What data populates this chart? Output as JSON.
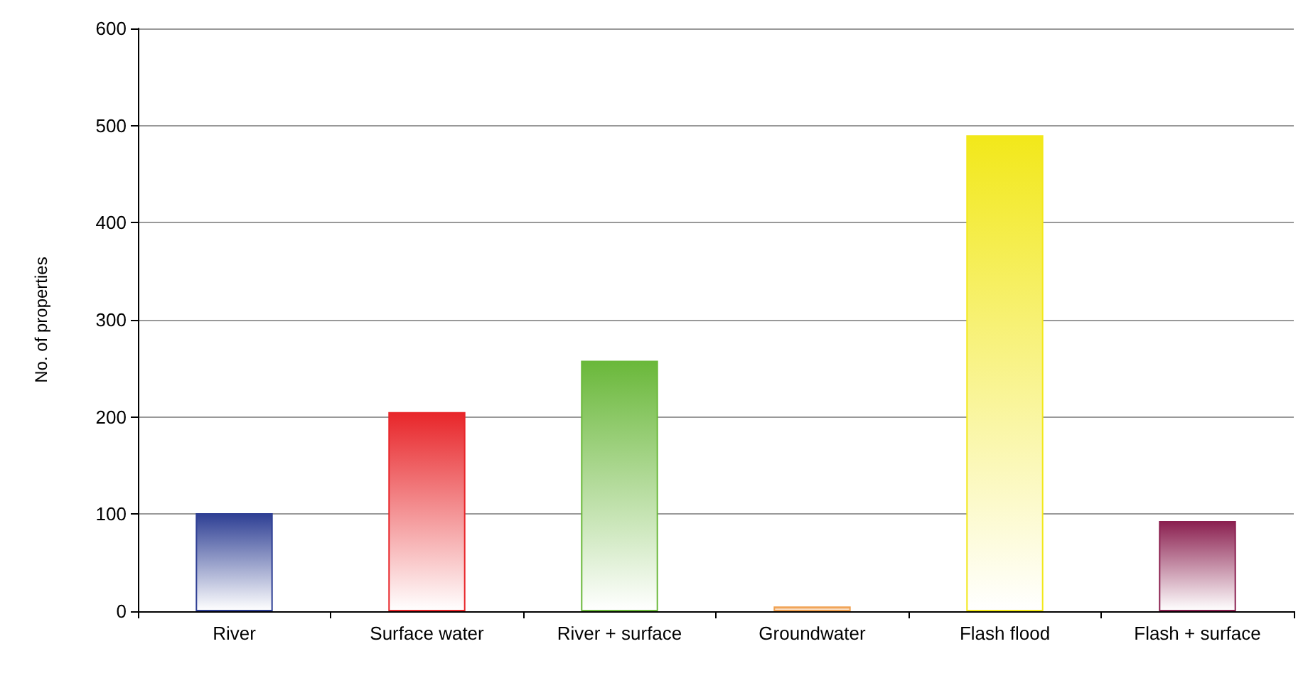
{
  "chart_data": {
    "type": "bar",
    "ylabel": "No. of properties",
    "categories": [
      "River",
      "Surface water",
      "River + surface",
      "Groundwater",
      "Flash flood",
      "Flash + surface"
    ],
    "values": [
      101,
      205,
      258,
      5,
      490,
      93
    ],
    "colors": [
      "#2e3f94",
      "#e8262a",
      "#6ab83a",
      "#f0a050",
      "#f2e81a",
      "#8b2050"
    ],
    "ylim": [
      0,
      600
    ],
    "yticks": [
      0,
      100,
      200,
      300,
      400,
      500,
      600
    ],
    "grid": "y"
  }
}
